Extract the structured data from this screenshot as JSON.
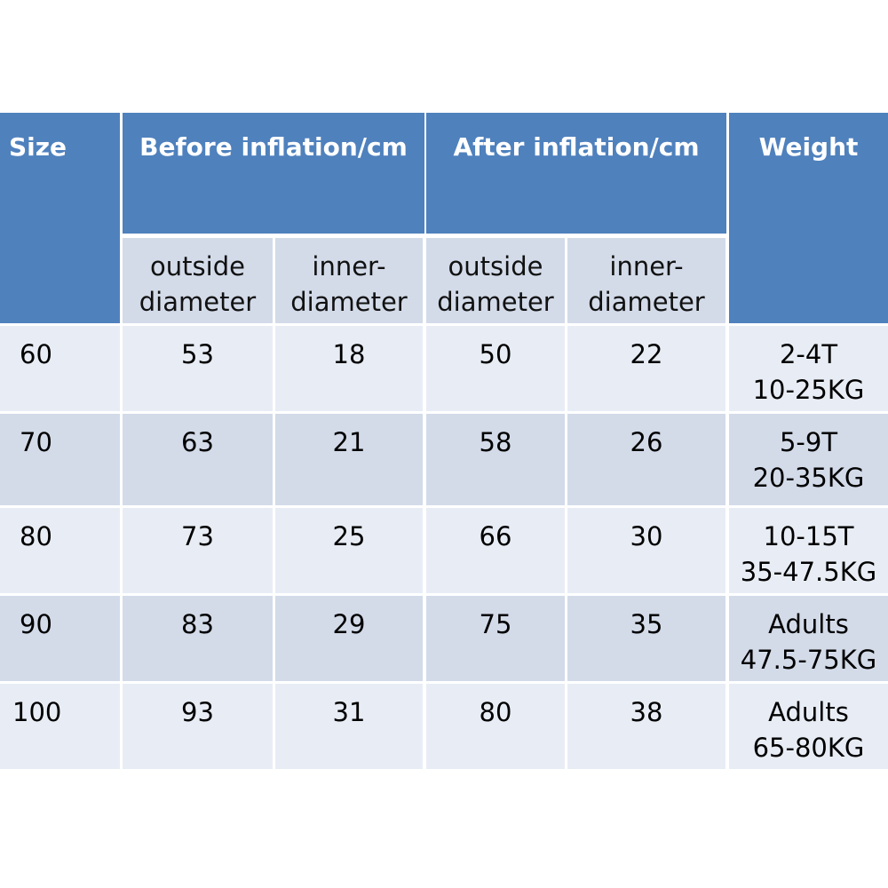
{
  "headers": {
    "size": "Size",
    "before": "Before inflation/cm",
    "after": "After inflation/cm",
    "weight": "Weight"
  },
  "subheaders": {
    "before_outside": [
      "outside",
      "diameter"
    ],
    "before_inner": [
      "inner-",
      "diameter"
    ],
    "after_outside": [
      "outside",
      "diameter"
    ],
    "after_inner": [
      "inner-",
      "diameter"
    ]
  },
  "rows": [
    {
      "size": "60",
      "before_outside": "53",
      "before_inner": "18",
      "after_outside": "50",
      "after_inner": "22",
      "weight": [
        "2-4T",
        "10-25KG"
      ]
    },
    {
      "size": "70",
      "before_outside": "63",
      "before_inner": "21",
      "after_outside": "58",
      "after_inner": "26",
      "weight": [
        "5-9T",
        "20-35KG"
      ]
    },
    {
      "size": "80",
      "before_outside": "73",
      "before_inner": "25",
      "after_outside": "66",
      "after_inner": "30",
      "weight": [
        "10-15T",
        "35-47.5KG"
      ]
    },
    {
      "size": "90",
      "before_outside": "83",
      "before_inner": "29",
      "after_outside": "75",
      "after_inner": "35",
      "weight": [
        "Adults",
        "47.5-75KG"
      ]
    },
    {
      "size": "100",
      "before_outside": "93",
      "before_inner": "31",
      "after_outside": "80",
      "after_inner": "38",
      "weight": [
        "Adults",
        "65-80KG"
      ]
    }
  ],
  "colors": {
    "header": "#4f81bd",
    "subheader": "#d3dbe9",
    "row_light": "#e8edf5",
    "row_dark": "#d3dbe9"
  }
}
